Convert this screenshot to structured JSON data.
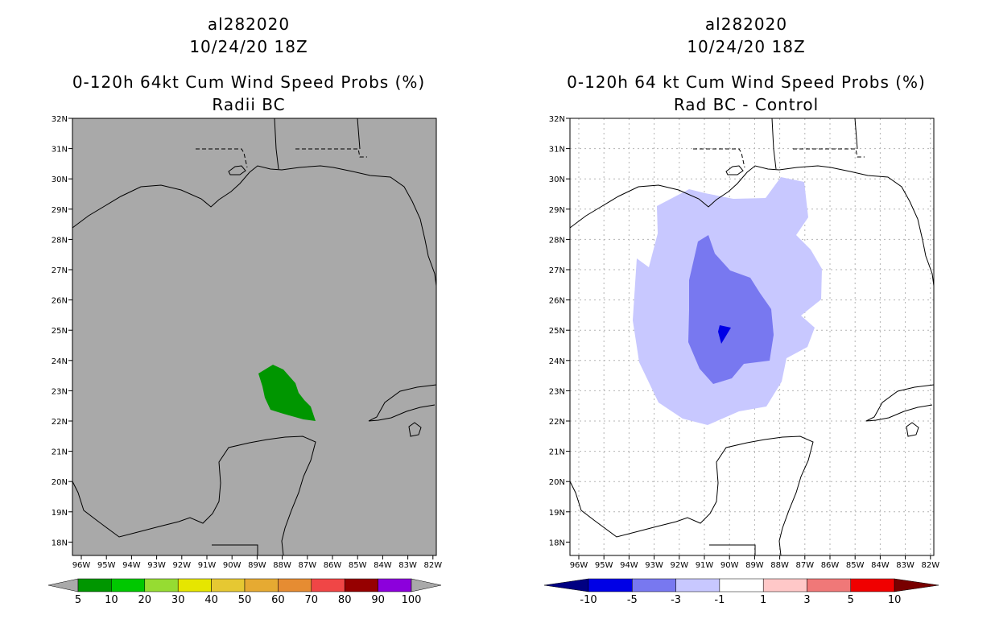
{
  "left_panel": {
    "title_line1": "al282020",
    "title_line2": "10/24/20 18Z",
    "title_line3": "0-120h 64kt Cum Wind Speed Probs (%)",
    "title_line4": "Radii BC",
    "background_color": "#a9a9a9",
    "probability_region": {
      "value_bin": "5-10",
      "color": "#009600",
      "center_lat": 23.2,
      "center_lon": -88.1
    },
    "colorbar": {
      "labels": [
        "5",
        "10",
        "20",
        "30",
        "40",
        "50",
        "60",
        "70",
        "80",
        "90",
        "100"
      ],
      "colors": [
        "#009600",
        "#00c800",
        "#96dc32",
        "#e6e600",
        "#e6c832",
        "#e6aa32",
        "#e68c32",
        "#f04646",
        "#960000",
        "#8c00dc"
      ]
    }
  },
  "right_panel": {
    "title_line1": "al282020",
    "title_line2": "10/24/20 18Z",
    "title_line3": "0-120h 64 kt Cum Wind Speed Probs (%)",
    "title_line4": "Rad BC - Control",
    "background_color": "#ffffff",
    "difference_regions": [
      {
        "bin": "-3 to -1",
        "color": "#c8c8ff"
      },
      {
        "bin": "-5 to -3",
        "color": "#7878f0"
      },
      {
        "bin": "-10 to -5",
        "color": "#0000e6"
      }
    ],
    "colorbar": {
      "labels": [
        "-10",
        "-5",
        "-3",
        "-1",
        "1",
        "3",
        "5",
        "10"
      ],
      "colors": [
        "#000082",
        "#0000e6",
        "#7878f0",
        "#c8c8ff",
        "#ffffff",
        "#ffc8c8",
        "#f07878",
        "#f00000",
        "#780000"
      ]
    }
  },
  "axes": {
    "lat_labels": [
      "32N",
      "31N",
      "30N",
      "29N",
      "28N",
      "27N",
      "26N",
      "25N",
      "24N",
      "23N",
      "22N",
      "21N",
      "20N",
      "19N",
      "18N"
    ],
    "lon_labels": [
      "96W",
      "95W",
      "94W",
      "93W",
      "92W",
      "91W",
      "90W",
      "89W",
      "88W",
      "87W",
      "86W",
      "85W",
      "84W",
      "83W",
      "82W"
    ]
  }
}
